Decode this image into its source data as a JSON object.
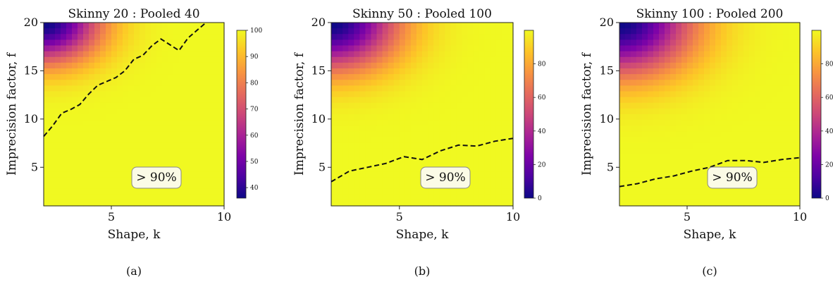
{
  "chart_data": [
    {
      "type": "heatmap",
      "title": "Skinny 20 : Pooled 40",
      "xlabel": "Shape, k",
      "ylabel": "Imprecision factor, f",
      "xlim": [
        2,
        10
      ],
      "ylim": [
        1,
        20
      ],
      "xticks": [
        5,
        10
      ],
      "yticks": [
        5,
        10,
        15,
        20
      ],
      "colorbar": {
        "min": 36,
        "max": 100,
        "ticks": [
          40,
          50,
          60,
          70,
          80,
          90,
          100
        ],
        "colormap": "plasma"
      },
      "surface": {
        "low_corner": [
          2,
          20
        ],
        "low_value": 36,
        "gradient_spread": 15
      },
      "contour": {
        "level_label": "> 90%",
        "x": [
          2.0,
          2.4,
          2.8,
          3.2,
          3.6,
          4.0,
          4.4,
          4.8,
          5.2,
          5.6,
          6.0,
          6.4,
          6.8,
          7.2,
          7.6,
          8.0,
          8.4,
          8.8,
          9.2
        ],
        "y": [
          8.2,
          9.3,
          10.6,
          11.0,
          11.5,
          12.6,
          13.5,
          13.9,
          14.3,
          15.0,
          16.2,
          16.6,
          17.6,
          18.3,
          17.7,
          17.1,
          18.4,
          19.2,
          20.0
        ]
      },
      "caption": "(a)"
    },
    {
      "type": "heatmap",
      "title": "Skinny 50 : Pooled 100",
      "xlabel": "Shape, k",
      "ylabel": "Imprecision factor, f",
      "xlim": [
        2,
        10
      ],
      "ylim": [
        1,
        20
      ],
      "xticks": [
        5,
        10
      ],
      "yticks": [
        5,
        10,
        15,
        20
      ],
      "colorbar": {
        "min": 0,
        "max": 100,
        "ticks": [
          0,
          20,
          40,
          60,
          80
        ],
        "colormap": "plasma"
      },
      "surface": {
        "low_corner": [
          2,
          20
        ],
        "low_value": 0,
        "gradient_spread": 11
      },
      "contour": {
        "level_label": "> 90%",
        "x": [
          2.0,
          2.8,
          3.6,
          4.4,
          5.2,
          6.0,
          6.8,
          7.6,
          8.4,
          9.2,
          10.0
        ],
        "y": [
          3.5,
          4.6,
          5.0,
          5.4,
          6.1,
          5.8,
          6.7,
          7.3,
          7.2,
          7.7,
          8.0
        ]
      },
      "caption": "(b)"
    },
    {
      "type": "heatmap",
      "title": "Skinny 100 : Pooled 200",
      "xlabel": "Shape, k",
      "ylabel": "Imprecision factor, f",
      "xlim": [
        2,
        10
      ],
      "ylim": [
        1,
        20
      ],
      "xticks": [
        5,
        10
      ],
      "yticks": [
        5,
        10,
        15,
        20
      ],
      "colorbar": {
        "min": 0,
        "max": 100,
        "ticks": [
          0,
          20,
          40,
          60,
          80
        ],
        "colormap": "plasma"
      },
      "surface": {
        "low_corner": [
          2,
          20
        ],
        "low_value": 0,
        "gradient_spread": 9
      },
      "contour": {
        "level_label": "> 90%",
        "x": [
          2.0,
          2.8,
          3.6,
          4.4,
          5.2,
          6.0,
          6.8,
          7.6,
          8.4,
          9.2,
          10.0
        ],
        "y": [
          3.0,
          3.3,
          3.8,
          4.1,
          4.6,
          5.0,
          5.7,
          5.7,
          5.5,
          5.8,
          6.0
        ]
      },
      "caption": "(c)"
    }
  ]
}
